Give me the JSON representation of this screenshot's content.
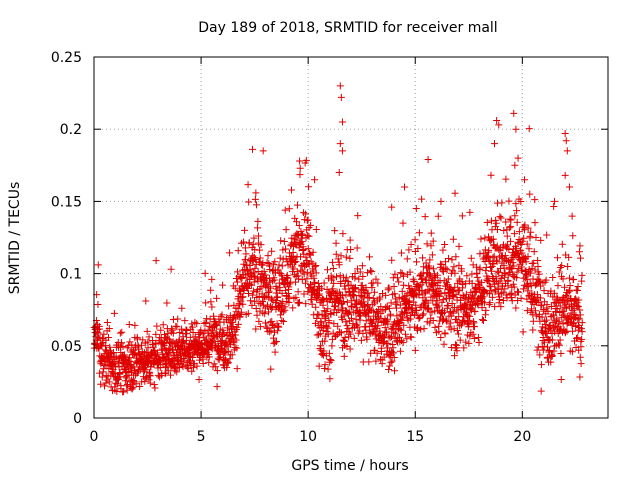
{
  "chart_data": {
    "type": "scatter",
    "title": "Day 189 of 2018, SRMTID for receiver mall",
    "xlabel": "GPS time / hours",
    "ylabel": "SRMTID / TECUs",
    "xlim": [
      0,
      24
    ],
    "ylim": [
      0,
      0.25
    ],
    "xticks": [
      0,
      5,
      10,
      15,
      20
    ],
    "yticks": [
      0,
      0.05,
      0.1,
      0.15,
      0.2,
      0.25
    ],
    "ytick_labels": [
      "0",
      "0.05",
      "0.1",
      "0.15",
      "0.2",
      "0.25"
    ],
    "grid": true,
    "marker": "plus",
    "series_color": "#e00000",
    "profile": {
      "x": [
        0.0,
        0.5,
        1.0,
        1.5,
        2.0,
        2.5,
        3.0,
        3.5,
        4.0,
        4.5,
        5.0,
        5.5,
        6.0,
        6.5,
        7.0,
        7.5,
        8.0,
        8.5,
        9.0,
        9.5,
        10.0,
        10.5,
        11.0,
        11.5,
        12.0,
        12.5,
        13.0,
        13.5,
        14.0,
        14.5,
        15.0,
        15.5,
        16.0,
        16.5,
        17.0,
        17.5,
        18.0,
        18.5,
        19.0,
        19.5,
        20.0,
        20.5,
        21.0,
        21.5,
        22.0,
        22.5,
        22.8
      ],
      "y": [
        0.06,
        0.04,
        0.035,
        0.035,
        0.04,
        0.04,
        0.045,
        0.045,
        0.05,
        0.05,
        0.05,
        0.055,
        0.055,
        0.06,
        0.095,
        0.1,
        0.085,
        0.08,
        0.095,
        0.11,
        0.115,
        0.07,
        0.07,
        0.08,
        0.075,
        0.08,
        0.07,
        0.06,
        0.06,
        0.075,
        0.085,
        0.09,
        0.085,
        0.08,
        0.08,
        0.075,
        0.09,
        0.105,
        0.11,
        0.115,
        0.115,
        0.09,
        0.07,
        0.07,
        0.075,
        0.07,
        0.06
      ]
    },
    "spread": {
      "x": [
        0.0,
        5.0,
        6.8,
        10.0,
        13.0,
        15.0,
        18.0,
        20.0,
        22.8
      ],
      "y": [
        0.014,
        0.013,
        0.02,
        0.025,
        0.02,
        0.02,
        0.022,
        0.03,
        0.02
      ]
    },
    "bursts": [
      {
        "x": 7.4,
        "y": 0.186
      },
      {
        "x": 7.9,
        "y": 0.185
      },
      {
        "x": 9.6,
        "y": 0.178
      },
      {
        "x": 10.3,
        "y": 0.165
      },
      {
        "x": 11.5,
        "y": 0.23
      },
      {
        "x": 11.55,
        "y": 0.222
      },
      {
        "x": 11.6,
        "y": 0.205
      },
      {
        "x": 11.5,
        "y": 0.19
      },
      {
        "x": 11.6,
        "y": 0.185
      },
      {
        "x": 11.45,
        "y": 0.17
      },
      {
        "x": 13.9,
        "y": 0.146
      },
      {
        "x": 14.5,
        "y": 0.16
      },
      {
        "x": 15.6,
        "y": 0.179
      },
      {
        "x": 16.2,
        "y": 0.15
      },
      {
        "x": 17.2,
        "y": 0.14
      },
      {
        "x": 18.8,
        "y": 0.206
      },
      {
        "x": 18.9,
        "y": 0.203
      },
      {
        "x": 18.7,
        "y": 0.19
      },
      {
        "x": 19.6,
        "y": 0.211
      },
      {
        "x": 19.7,
        "y": 0.2
      },
      {
        "x": 19.8,
        "y": 0.18
      },
      {
        "x": 19.65,
        "y": 0.175
      },
      {
        "x": 20.1,
        "y": 0.165
      },
      {
        "x": 21.5,
        "y": 0.15
      },
      {
        "x": 22.0,
        "y": 0.197
      },
      {
        "x": 22.05,
        "y": 0.192
      },
      {
        "x": 22.1,
        "y": 0.185
      },
      {
        "x": 22.0,
        "y": 0.168
      },
      {
        "x": 22.2,
        "y": 0.16
      },
      {
        "x": 0.2,
        "y": 0.106
      },
      {
        "x": 2.9,
        "y": 0.109
      },
      {
        "x": 3.6,
        "y": 0.103
      },
      {
        "x": 5.5,
        "y": 0.096
      }
    ],
    "point_count": 2600
  }
}
